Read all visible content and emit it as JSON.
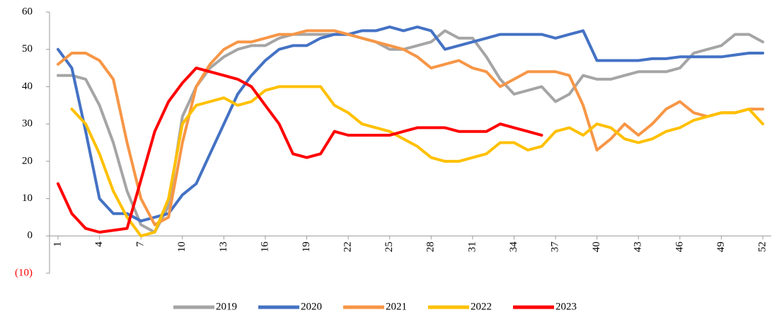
{
  "chart_data": {
    "type": "line",
    "x": [
      1,
      2,
      3,
      4,
      5,
      6,
      7,
      8,
      9,
      10,
      11,
      12,
      13,
      14,
      15,
      16,
      17,
      18,
      19,
      20,
      21,
      22,
      23,
      24,
      25,
      26,
      27,
      28,
      29,
      30,
      31,
      32,
      33,
      34,
      35,
      36,
      37,
      38,
      39,
      40,
      41,
      42,
      43,
      44,
      45,
      46,
      47,
      48,
      49,
      50,
      51,
      52
    ],
    "xlim": [
      1,
      52
    ],
    "xticks": [
      1,
      4,
      7,
      10,
      13,
      16,
      19,
      22,
      25,
      28,
      31,
      34,
      37,
      40,
      43,
      46,
      49,
      52
    ],
    "ylim": [
      -10,
      60
    ],
    "yticks": [
      {
        "value": -10,
        "label": "(10)"
      },
      0,
      10,
      20,
      30,
      40,
      50,
      60
    ],
    "grid": false,
    "legend": "bottom",
    "series": [
      {
        "name": "2019",
        "color": "#a5a5a5",
        "values": [
          43,
          43,
          42,
          35,
          25,
          12,
          3,
          1,
          8,
          32,
          40,
          45,
          48,
          50,
          51,
          51,
          53,
          54,
          54,
          54,
          54,
          54,
          53,
          52,
          50,
          50,
          51,
          52,
          55,
          53,
          53,
          48,
          42,
          38,
          39,
          40,
          36,
          38,
          43,
          42,
          42,
          43,
          44,
          44,
          44,
          45,
          49,
          50,
          51,
          54,
          54,
          52
        ]
      },
      {
        "name": "2020",
        "color": "#4472c4",
        "values": [
          50,
          45,
          28,
          10,
          6,
          6,
          4,
          5,
          6,
          11,
          14,
          22,
          30,
          38,
          43,
          47,
          50,
          51,
          51,
          53,
          54,
          54,
          55,
          55,
          56,
          55,
          56,
          55,
          50,
          51,
          52,
          53,
          54,
          54,
          54,
          54,
          53,
          54,
          55,
          47,
          47,
          47,
          47,
          47.5,
          47.5,
          48,
          48,
          48,
          48,
          48.5,
          49,
          49
        ]
      },
      {
        "name": "2021",
        "color": "#f79646",
        "values": [
          46,
          49,
          49,
          47,
          42,
          25,
          10,
          3,
          5,
          25,
          40,
          46,
          50,
          52,
          52,
          53,
          54,
          54,
          55,
          55,
          55,
          54,
          53,
          52,
          51,
          50,
          48,
          45,
          46,
          47,
          45,
          44,
          40,
          42,
          44,
          44,
          44,
          43,
          35,
          23,
          26,
          30,
          27,
          30,
          34,
          36,
          33,
          32,
          33,
          33,
          34,
          34
        ]
      },
      {
        "name": "2022",
        "color": "#ffc000",
        "values": [
          null,
          34,
          30,
          22,
          12,
          5,
          0,
          1,
          10,
          30,
          35,
          36,
          37,
          35,
          36,
          39,
          40,
          40,
          40,
          40,
          35,
          33,
          30,
          29,
          28,
          26,
          24,
          21,
          20,
          20,
          21,
          22,
          25,
          25,
          23,
          24,
          28,
          29,
          27,
          30,
          29,
          26,
          25,
          26,
          28,
          29,
          31,
          32,
          33,
          33,
          34,
          30
        ]
      },
      {
        "name": "2023",
        "color": "#ff0000",
        "values": [
          14,
          6,
          2,
          1,
          1.5,
          2,
          15,
          28,
          36,
          41,
          45,
          44,
          43,
          42,
          40,
          35,
          30,
          22,
          21,
          22,
          28,
          27,
          27,
          27,
          27,
          28,
          29,
          29,
          29,
          28,
          28,
          28,
          30,
          29,
          28,
          27,
          null,
          null,
          null,
          null,
          null,
          null,
          null,
          null,
          null,
          null,
          null,
          null,
          null,
          null,
          null,
          null
        ]
      }
    ]
  }
}
